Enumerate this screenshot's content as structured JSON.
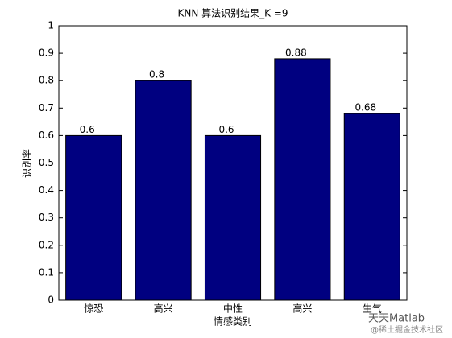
{
  "chart_data": {
    "type": "bar",
    "title": "KNN 算法识别结果_K =9",
    "categories": [
      "惊恐",
      "高兴",
      "中性",
      "高兴",
      "生气"
    ],
    "values": [
      0.6,
      0.8,
      0.6,
      0.88,
      0.68
    ],
    "color": "#000080",
    "xlabel": "情感类别",
    "ylabel": "识别率",
    "ylim": [
      0,
      1
    ],
    "yticks": [
      0,
      0.1,
      0.2,
      0.3,
      0.4,
      0.5,
      0.6,
      0.7,
      0.8,
      0.9,
      1
    ],
    "grid": false
  },
  "watermark": {
    "brand": "天天Matlab",
    "source": "@稀土掘金技术社区"
  }
}
